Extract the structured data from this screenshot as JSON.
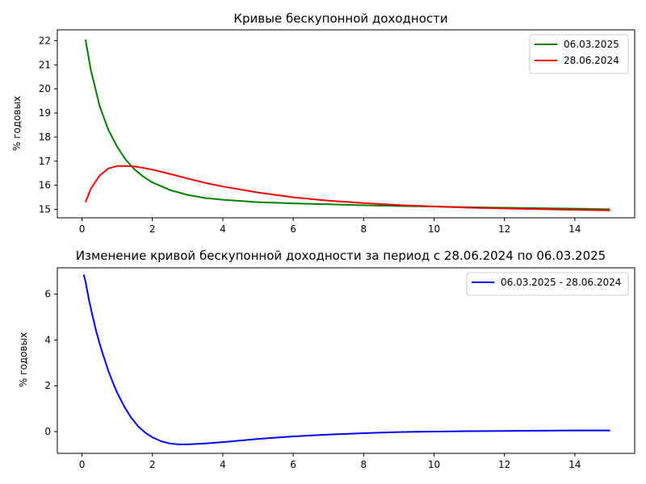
{
  "chart_data": [
    {
      "type": "line",
      "title": "Кривые бескупонной доходности",
      "xlabel": "",
      "ylabel": "% годовых",
      "xlim": [
        -0.7,
        15.7
      ],
      "ylim": [
        14.65,
        22.45
      ],
      "xticks": [
        0,
        2,
        4,
        6,
        8,
        10,
        12,
        14
      ],
      "yticks": [
        15,
        16,
        17,
        18,
        19,
        20,
        21,
        22
      ],
      "grid": false,
      "legend_position": "top-right",
      "series": [
        {
          "name": "06.03.2025",
          "color": "#008000",
          "x": [
            0.1,
            0.25,
            0.5,
            0.75,
            1,
            1.25,
            1.5,
            1.75,
            2,
            2.5,
            3,
            3.5,
            4,
            5,
            6,
            7,
            8,
            9,
            10,
            11,
            12,
            13,
            14,
            15
          ],
          "y": [
            22.05,
            20.8,
            19.3,
            18.3,
            17.6,
            17.05,
            16.65,
            16.35,
            16.12,
            15.8,
            15.6,
            15.47,
            15.4,
            15.3,
            15.25,
            15.21,
            15.17,
            15.14,
            15.12,
            15.09,
            15.07,
            15.05,
            15.03,
            15.0
          ]
        },
        {
          "name": "28.06.2024",
          "color": "#ff0000",
          "x": [
            0.1,
            0.25,
            0.5,
            0.75,
            1,
            1.25,
            1.5,
            1.75,
            2,
            2.5,
            3,
            3.5,
            4,
            5,
            6,
            7,
            8,
            9,
            10,
            11,
            12,
            13,
            14,
            15
          ],
          "y": [
            15.3,
            15.85,
            16.4,
            16.7,
            16.8,
            16.8,
            16.78,
            16.72,
            16.65,
            16.47,
            16.28,
            16.1,
            15.95,
            15.7,
            15.5,
            15.36,
            15.26,
            15.18,
            15.12,
            15.07,
            15.04,
            15.01,
            14.98,
            14.96
          ]
        }
      ]
    },
    {
      "type": "line",
      "title": "Изменение кривой бескупонной доходности за период с 28.06.2024 по 06.03.2025",
      "xlabel": "",
      "ylabel": "% годовых",
      "xlim": [
        -0.7,
        15.7
      ],
      "ylim": [
        -0.95,
        7.15
      ],
      "xticks": [
        0,
        2,
        4,
        6,
        8,
        10,
        12,
        14
      ],
      "yticks": [
        0,
        2,
        4,
        6
      ],
      "grid": false,
      "legend_position": "top-right",
      "series": [
        {
          "name": "06.03.2025 - 28.06.2024",
          "color": "#0000ff",
          "x": [
            0.05,
            0.1,
            0.2,
            0.3,
            0.4,
            0.5,
            0.6,
            0.75,
            0.9,
            1,
            1.2,
            1.4,
            1.6,
            1.8,
            2,
            2.25,
            2.5,
            2.75,
            3,
            3.5,
            4,
            4.5,
            5,
            6,
            7,
            8,
            9,
            10,
            11,
            12,
            13,
            14,
            15
          ],
          "y": [
            6.85,
            6.55,
            5.75,
            5.05,
            4.4,
            3.85,
            3.35,
            2.65,
            2.05,
            1.7,
            1.1,
            0.6,
            0.22,
            -0.05,
            -0.25,
            -0.42,
            -0.52,
            -0.56,
            -0.56,
            -0.52,
            -0.46,
            -0.39,
            -0.32,
            -0.21,
            -0.13,
            -0.07,
            -0.02,
            0.0,
            0.02,
            0.03,
            0.04,
            0.05,
            0.05
          ]
        }
      ]
    }
  ]
}
